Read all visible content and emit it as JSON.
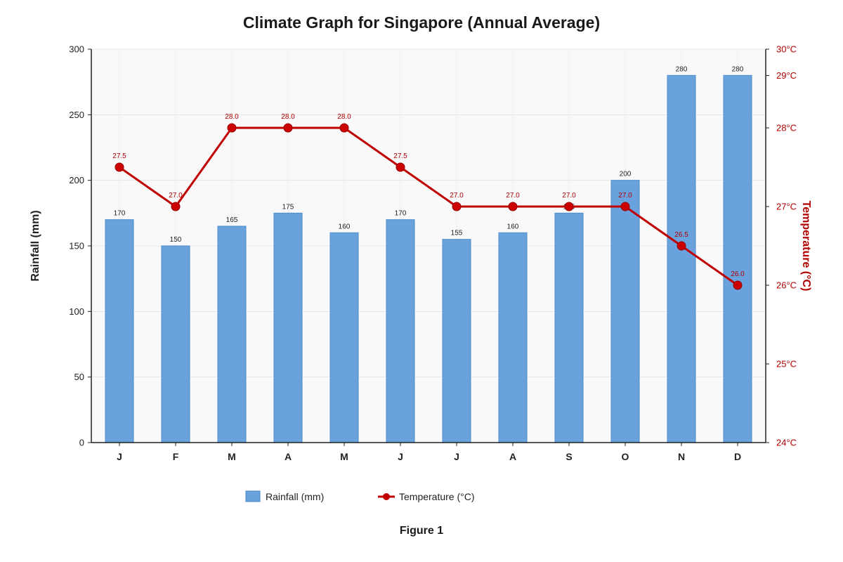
{
  "chart_data": {
    "type": "bar",
    "title": "Climate Graph for Singapore (Annual Average)",
    "caption": "Figure 1",
    "categories": [
      "J",
      "F",
      "M",
      "A",
      "M",
      "J",
      "J",
      "A",
      "S",
      "O",
      "N",
      "D"
    ],
    "series": [
      {
        "name": "Rainfall (mm)",
        "type": "bar",
        "axis": "left",
        "color": "#6aa2dd",
        "values": [
          170,
          150,
          165,
          175,
          160,
          170,
          155,
          160,
          175,
          200,
          280,
          280
        ]
      },
      {
        "name": "Temperature (°C)",
        "type": "line",
        "axis": "right",
        "color": "#c00000",
        "values": [
          27.5,
          27.0,
          28.0,
          28.0,
          28.0,
          27.5,
          27.0,
          27.0,
          27.0,
          27.0,
          26.5,
          26.0
        ]
      }
    ],
    "ylabel_left": "Rainfall (mm)",
    "ylabel_right": "Temperature (°C)",
    "ylim_left": [
      0,
      300
    ],
    "yticks_left": [
      0,
      50,
      100,
      150,
      200,
      250,
      300
    ],
    "ylim_right": [
      24,
      30
    ],
    "yticks_right": [
      {
        "value": 24,
        "label": "24°C"
      },
      {
        "value": 25,
        "label": "25°C"
      },
      {
        "value": 26,
        "label": "26°C"
      },
      {
        "value": 27,
        "label": "27°C"
      },
      {
        "value": 28,
        "label": "28°C"
      },
      {
        "value": 29,
        "label": "29°C"
      },
      {
        "value": 30,
        "label": "30°C"
      }
    ],
    "grid": true,
    "legend_position": "bottom"
  }
}
